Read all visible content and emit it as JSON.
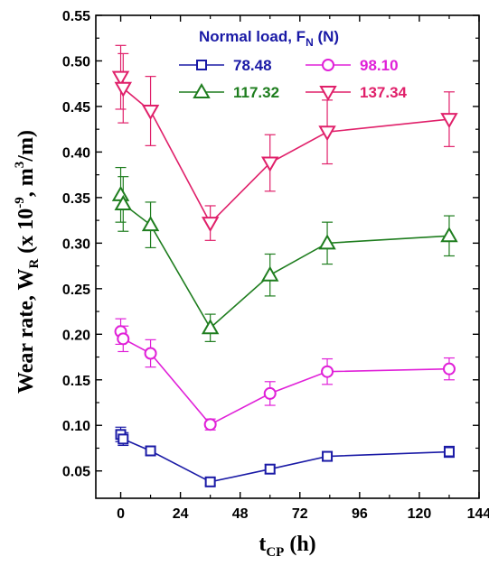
{
  "chart_data": {
    "type": "line",
    "xlabel": {
      "main": "t",
      "sub": "CP",
      "unit": " (h)"
    },
    "ylabel": {
      "prefix": "Wear rate, W",
      "sub": "R",
      "mid": " (x 10",
      "sup": "-9",
      "mid2": ", m",
      "sup2": "3",
      "suffix": "/m)"
    },
    "xlim": [
      -10,
      144
    ],
    "ylim": [
      0.02,
      0.55
    ],
    "xticks": [
      0,
      24,
      48,
      72,
      96,
      120,
      144
    ],
    "yticks": [
      0.05,
      0.1,
      0.15,
      0.2,
      0.25,
      0.3,
      0.35,
      0.4,
      0.45,
      0.5,
      0.55
    ],
    "legend": {
      "title_main": "Normal load, F",
      "title_sub": "N",
      "title_unit": " (N)",
      "position": "top-right"
    },
    "series": [
      {
        "name": "78.48",
        "color": "#1a1aa6",
        "marker": "square",
        "x": [
          0,
          1,
          12,
          36,
          60,
          83,
          132
        ],
        "y": [
          0.09,
          0.085,
          0.072,
          0.038,
          0.052,
          0.066,
          0.071
        ],
        "err": [
          0.008,
          0.007,
          0.005,
          0.004,
          0.005,
          0.005,
          0.006
        ]
      },
      {
        "name": "98.10",
        "color": "#e020d8",
        "marker": "circle",
        "x": [
          0,
          1,
          12,
          36,
          60,
          83,
          132
        ],
        "y": [
          0.203,
          0.195,
          0.179,
          0.101,
          0.135,
          0.159,
          0.162
        ],
        "err": [
          0.014,
          0.014,
          0.015,
          0.006,
          0.013,
          0.014,
          0.012
        ]
      },
      {
        "name": "117.32",
        "color": "#1e7d1e",
        "marker": "triangle-up",
        "x": [
          0,
          1,
          12,
          36,
          60,
          83,
          132
        ],
        "y": [
          0.353,
          0.343,
          0.32,
          0.207,
          0.265,
          0.3,
          0.308
        ],
        "err": [
          0.03,
          0.03,
          0.025,
          0.015,
          0.023,
          0.023,
          0.022
        ]
      },
      {
        "name": "137.34",
        "color": "#e0206a",
        "marker": "triangle-down",
        "x": [
          0,
          1,
          12,
          36,
          60,
          83,
          132
        ],
        "y": [
          0.482,
          0.47,
          0.445,
          0.322,
          0.388,
          0.422,
          0.436
        ],
        "err": [
          0.035,
          0.038,
          0.038,
          0.019,
          0.031,
          0.035,
          0.03
        ]
      }
    ]
  }
}
